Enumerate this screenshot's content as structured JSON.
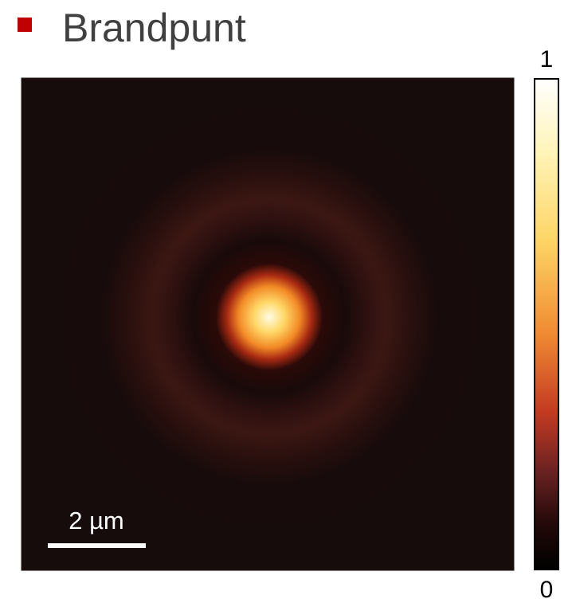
{
  "title": "Brandpunt",
  "colorbar": {
    "max": 1,
    "min": 0
  },
  "scale_bar": {
    "label": "2 µm"
  }
}
